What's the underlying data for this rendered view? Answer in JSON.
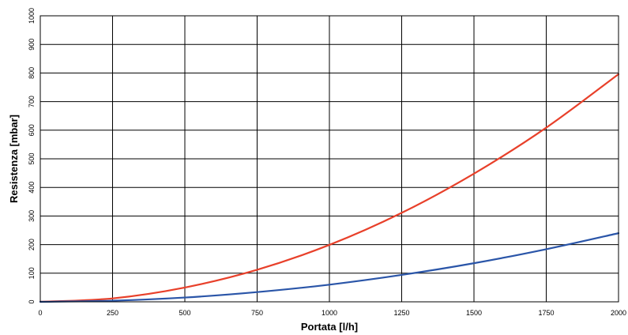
{
  "chart_data": {
    "type": "line",
    "title": "",
    "xlabel": "Portata [l/h]",
    "ylabel": "Resistenza [mbar]",
    "xlim": [
      0,
      2000
    ],
    "ylim": [
      0,
      1000
    ],
    "grid": true,
    "x_ticks": [
      "0",
      "250",
      "500",
      "750",
      "1000",
      "1250",
      "1500",
      "1750",
      "2000"
    ],
    "y_ticks": [
      "0",
      "100",
      "200",
      "300",
      "400",
      "500",
      "600",
      "700",
      "800",
      "900",
      "1000"
    ],
    "series": [
      {
        "color": "#e8402a",
        "x": [
          0,
          250,
          500,
          750,
          1000,
          1250,
          1500,
          1750,
          2000
        ],
        "values": [
          0,
          12,
          50,
          112,
          199,
          311,
          448,
          609,
          796
        ]
      },
      {
        "color": "#2a55a8",
        "x": [
          0,
          250,
          500,
          750,
          1000,
          1250,
          1500,
          1750,
          2000
        ],
        "values": [
          0,
          4,
          15,
          34,
          60,
          94,
          135,
          184,
          240
        ]
      }
    ]
  }
}
